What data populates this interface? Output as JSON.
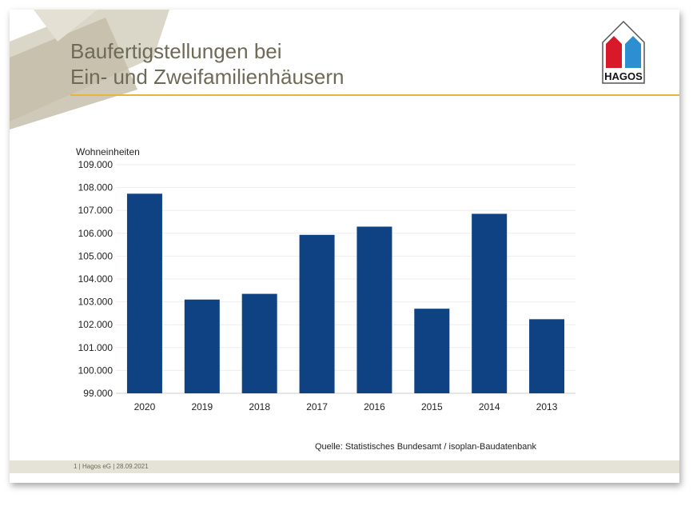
{
  "title_line1": "Baufertigstellungen bei",
  "title_line2": "Ein- und Zweifamilienhäusern",
  "logo_text": "HAGOS",
  "source": "Quelle: Statistisches Bundesamt / isoplan-Baudatenbank",
  "footer": "1 | Hagos eG | 28.09.2021",
  "colors": {
    "bar": "#0e4282",
    "accent_line": "#e8b43a",
    "title": "#6d6a58",
    "logo_red": "#d7192a",
    "logo_blue": "#2e8fd0"
  },
  "chart_data": {
    "type": "bar",
    "ylabel": "Wohneinheiten",
    "categories": [
      "2020",
      "2019",
      "2018",
      "2017",
      "2016",
      "2015",
      "2014",
      "2013"
    ],
    "values": [
      107730,
      103100,
      103350,
      105930,
      106290,
      102700,
      106850,
      102240
    ],
    "ylim": [
      99000,
      109000
    ],
    "yticks": [
      "99.000",
      "100.000",
      "101.000",
      "102.000",
      "103.000",
      "104.000",
      "105.000",
      "106.000",
      "107.000",
      "108.000",
      "109.000"
    ],
    "grid": true
  }
}
